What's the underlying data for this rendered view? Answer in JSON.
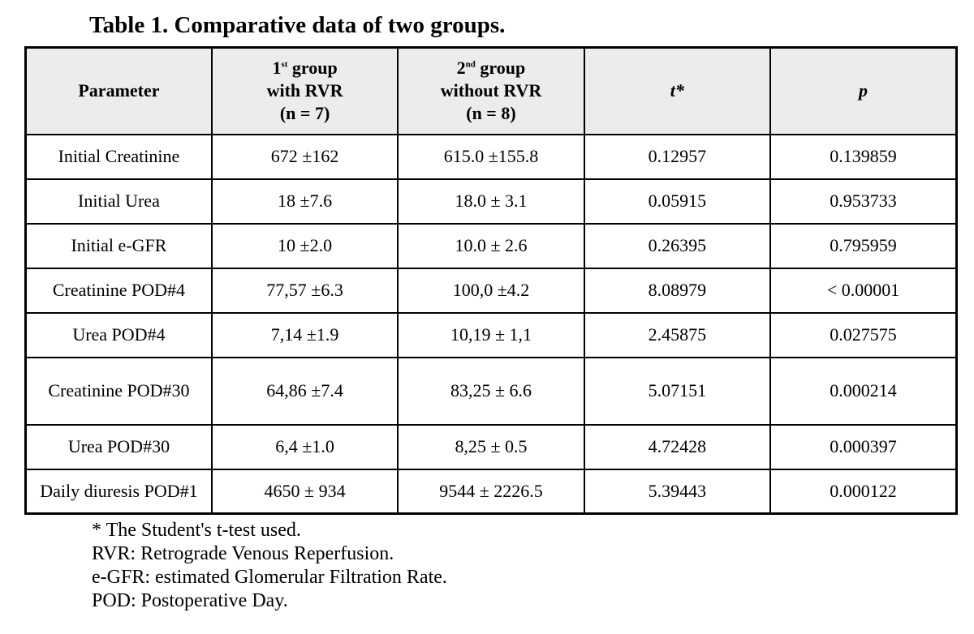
{
  "title": "Table 1. Comparative data of two groups.",
  "table": {
    "header": {
      "parameter": "Parameter",
      "group1": {
        "num": "1",
        "sup": "st",
        "rest": " group",
        "line2": "with RVR",
        "line3": "(n = 7)"
      },
      "group2": {
        "num": "2",
        "sup": "nd",
        "rest": " group",
        "line2": "without RVR",
        "line3": "(n = 8)"
      },
      "t": "t*",
      "p": "p"
    },
    "rows": [
      {
        "parameter": "Initial Creatinine",
        "group1": "672 ±162",
        "group2": "615.0 ±155.8",
        "t": "0.12957",
        "p": "0.139859"
      },
      {
        "parameter": "Initial Urea",
        "group1": "18 ±7.6",
        "group2": "18.0 ± 3.1",
        "t": "0.05915",
        "p": "0.953733"
      },
      {
        "parameter": "Initial e-GFR",
        "group1": "10 ±2.0",
        "group2": "10.0 ± 2.6",
        "t": "0.26395",
        "p": "0.795959"
      },
      {
        "parameter": "Creatinine POD#4",
        "group1": "77,57 ±6.3",
        "group2": "100,0 ±4.2",
        "t": "8.08979",
        "p": "< 0.00001"
      },
      {
        "parameter": "Urea POD#4",
        "group1": "7,14 ±1.9",
        "group2": "10,19 ± 1,1",
        "t": "2.45875",
        "p": "0.027575"
      },
      {
        "parameter": "Creatinine POD#30",
        "group1": "64,86 ±7.4",
        "group2": "83,25 ± 6.6",
        "t": "5.07151",
        "p": "0.000214"
      },
      {
        "parameter": "Urea POD#30",
        "group1": "6,4 ±1.0",
        "group2": "8,25 ± 0.5",
        "t": "4.72428",
        "p": "0.000397"
      },
      {
        "parameter": "Daily diuresis POD#1",
        "group1": "4650 ± 934",
        "group2": "9544 ± 2226.5",
        "t": "5.39443",
        "p": "0.000122"
      }
    ]
  },
  "footnotes": [
    "* The Student's t-test used.",
    "RVR: Retrograde Venous Reperfusion.",
    "e-GFR: estimated Glomerular Filtration Rate.",
    "POD: Postoperative Day."
  ],
  "colors": {
    "header_fill": "#ececec",
    "border": "#000000",
    "text": "#000000",
    "background": "#ffffff"
  }
}
